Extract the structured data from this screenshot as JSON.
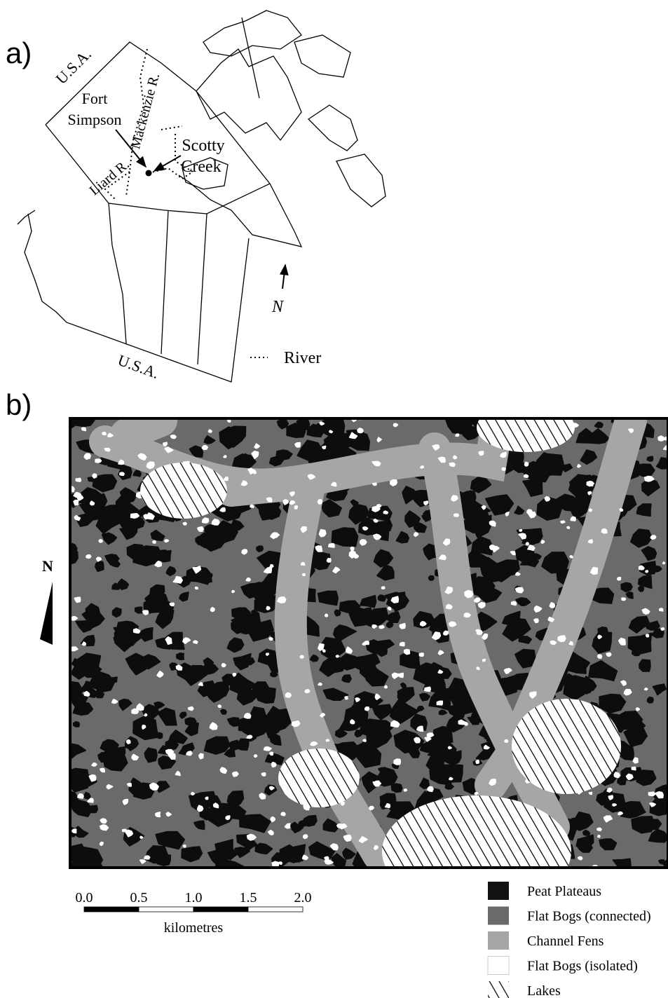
{
  "panel_a": {
    "label": "a)",
    "usa_top": "U.S.A.",
    "fort_simpson": [
      "Fort",
      "Simpson"
    ],
    "mackenzie": "Mackenzie R.",
    "scotty_creek": [
      "Scotty",
      "Creek"
    ],
    "liard": "Liard R.",
    "north": "N",
    "usa_bottom": "U.S.A.",
    "river_legend": "River"
  },
  "panel_b": {
    "label": "b)",
    "north": "N",
    "scale": {
      "ticks": [
        "0.0",
        "0.5",
        "1.0",
        "1.5",
        "2.0"
      ],
      "unit": "kilometres"
    },
    "legend": [
      "Peat Plateaus",
      "Flat Bogs (connected)",
      "Channel Fens",
      "Flat Bogs (isolated)",
      "Lakes"
    ]
  }
}
